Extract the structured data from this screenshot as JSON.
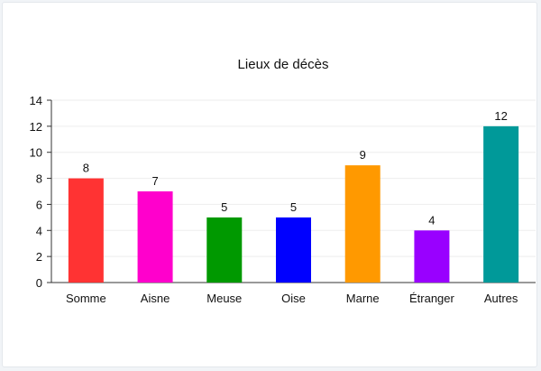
{
  "chart_data": {
    "type": "bar",
    "title": "Lieux de décès",
    "xlabel": "",
    "ylabel": "",
    "categories": [
      "Somme",
      "Aisne",
      "Meuse",
      "Oise",
      "Marne",
      "Étranger",
      "Autres"
    ],
    "values": [
      8,
      7,
      5,
      5,
      9,
      4,
      12
    ],
    "colors": [
      "#ff3333",
      "#ff00cc",
      "#009900",
      "#0000ff",
      "#ff9900",
      "#9900ff",
      "#009999"
    ],
    "ylim": [
      0,
      14
    ],
    "yticks": [
      0,
      2,
      4,
      6,
      8,
      10,
      12,
      14
    ],
    "grid": true,
    "legend": "none"
  }
}
